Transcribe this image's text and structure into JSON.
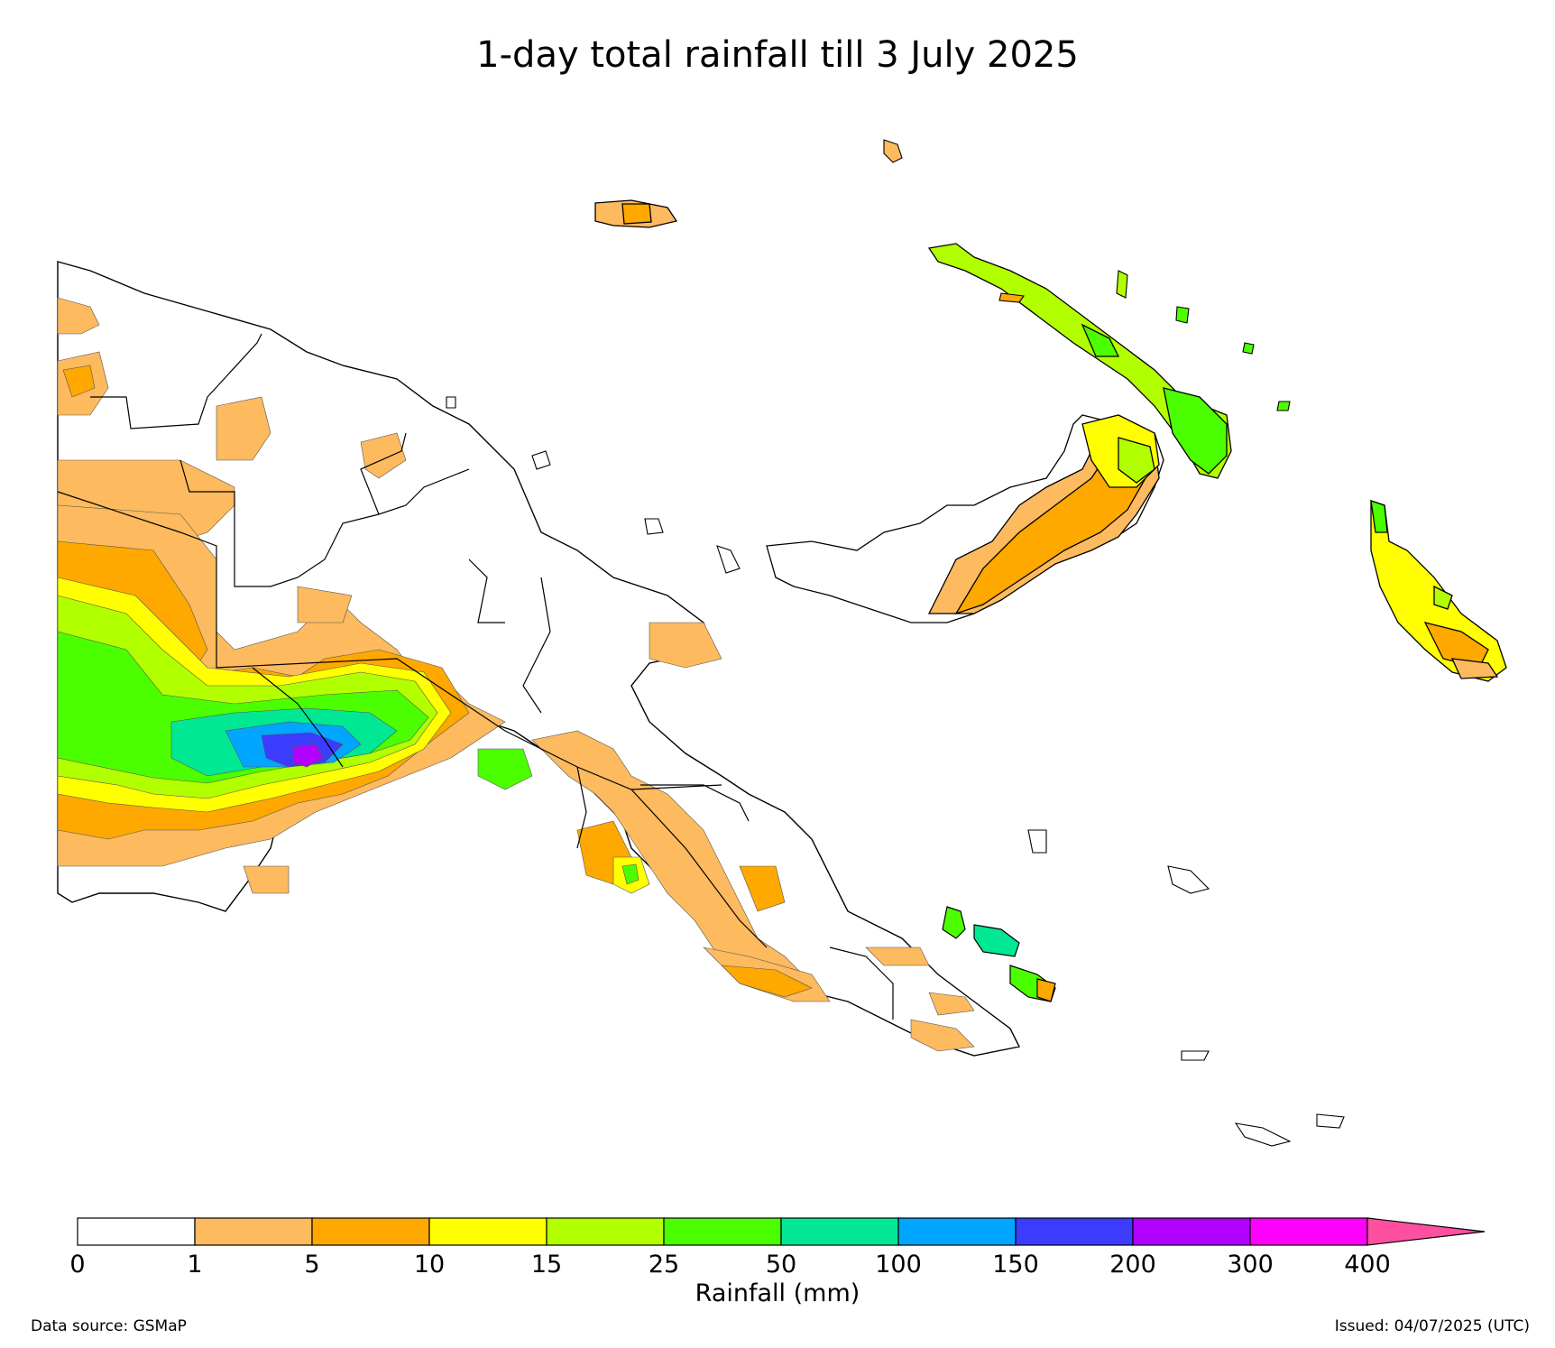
{
  "title": "1-day total rainfall till 3 July 2025",
  "colorbar": {
    "title": "Rainfall (mm)",
    "ticks": [
      "0",
      "1",
      "5",
      "10",
      "15",
      "25",
      "50",
      "100",
      "150",
      "200",
      "300",
      "400"
    ],
    "colors": [
      "#ffffff",
      "#fdba5e",
      "#ffa800",
      "#ffff00",
      "#b2ff00",
      "#4cff00",
      "#00e894",
      "#00a6ff",
      "#3c3cff",
      "#b200ff",
      "#ff00ff",
      "#ff4fa0"
    ]
  },
  "footer": {
    "data_source": "Data source: GSMaP",
    "issued": "Issued: 04/07/2025 (UTC)"
  }
}
